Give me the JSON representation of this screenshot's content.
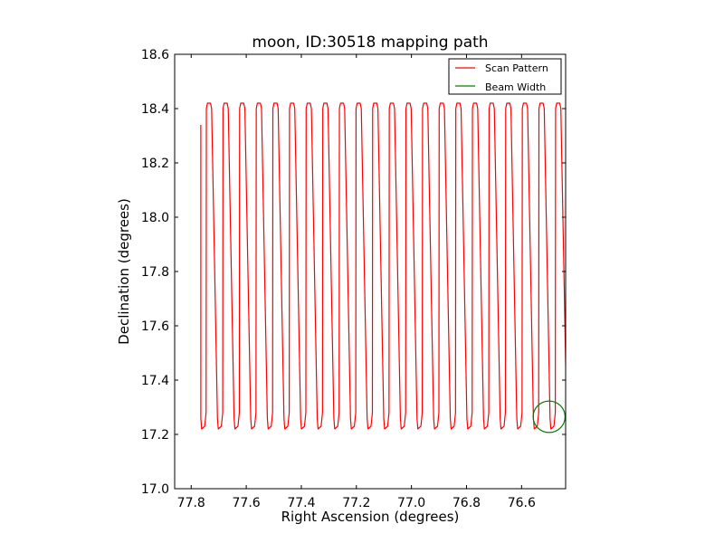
{
  "chart_data": {
    "type": "line",
    "title": "moon, ID:30518 mapping path",
    "xlabel": "Right Ascension (degrees)",
    "ylabel": "Declination (degrees)",
    "xlim": [
      77.86,
      76.44
    ],
    "ylim": [
      17.0,
      18.6
    ],
    "x_reversed": true,
    "xticks": [
      77.8,
      77.6,
      77.4,
      77.2,
      77.0,
      76.8,
      76.6
    ],
    "xtick_labels": [
      "77.8",
      "77.6",
      "77.4",
      "77.2",
      "77.0",
      "76.8",
      "76.6"
    ],
    "yticks": [
      17.0,
      17.2,
      17.4,
      17.6,
      17.8,
      18.0,
      18.2,
      18.4,
      18.6
    ],
    "ytick_labels": [
      "17.0",
      "17.2",
      "17.4",
      "17.6",
      "17.8",
      "18.0",
      "18.2",
      "18.4",
      "18.6"
    ],
    "legend_position": "top-right",
    "series": [
      {
        "name": "Scan Pattern",
        "color": "#ff0000",
        "scan": {
          "start_ra": 77.765,
          "start_dec": 18.34,
          "ra_step": 0.0604,
          "n_legs": 22,
          "dec_top": 18.42,
          "dec_bottom": 17.22
        }
      },
      {
        "name": "Beam Width",
        "color": "#008000",
        "circle": {
          "ra": 76.5,
          "dec": 17.265,
          "radius_deg": 0.058
        }
      }
    ]
  }
}
